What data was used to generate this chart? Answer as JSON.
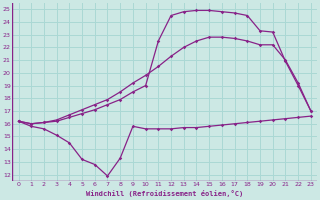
{
  "background_color": "#cce8e4",
  "grid_color": "#aad8d4",
  "line_color": "#882288",
  "xlabel": "Windchill (Refroidissement éolien,°C)",
  "xlim": [
    -0.5,
    23.5
  ],
  "ylim": [
    11.5,
    25.5
  ],
  "yticks": [
    12,
    13,
    14,
    15,
    16,
    17,
    18,
    19,
    20,
    21,
    22,
    23,
    24,
    25
  ],
  "xticks": [
    0,
    1,
    2,
    3,
    4,
    5,
    6,
    7,
    8,
    9,
    10,
    11,
    12,
    13,
    14,
    15,
    16,
    17,
    18,
    19,
    20,
    21,
    22,
    23
  ],
  "line1_x": [
    0,
    1,
    2,
    3,
    4,
    5,
    6,
    7,
    8,
    9,
    10,
    11,
    12,
    13,
    14,
    15,
    16,
    17,
    18,
    19,
    20,
    21,
    22,
    23
  ],
  "line1_y": [
    16.2,
    15.8,
    15.6,
    15.1,
    14.5,
    13.2,
    12.8,
    11.9,
    13.3,
    15.8,
    15.6,
    15.6,
    15.6,
    15.7,
    15.7,
    15.8,
    15.9,
    16.0,
    16.1,
    16.2,
    16.3,
    16.4,
    16.5,
    16.6
  ],
  "line2_x": [
    0,
    1,
    2,
    3,
    4,
    5,
    6,
    7,
    8,
    9,
    10,
    11,
    12,
    13,
    14,
    15,
    16,
    17,
    18,
    19,
    20,
    21,
    22,
    23
  ],
  "line2_y": [
    16.2,
    16.0,
    16.1,
    16.3,
    16.7,
    17.1,
    17.5,
    17.9,
    18.5,
    19.2,
    19.8,
    20.5,
    21.3,
    22.0,
    22.5,
    22.8,
    22.8,
    22.7,
    22.5,
    22.2,
    22.2,
    21.0,
    19.2,
    17.0
  ],
  "line3_x": [
    0,
    1,
    2,
    3,
    4,
    5,
    6,
    7,
    8,
    9,
    10,
    11,
    12,
    13,
    14,
    15,
    16,
    17,
    18,
    19,
    20,
    21,
    22,
    23
  ],
  "line3_y": [
    16.2,
    16.0,
    16.1,
    16.2,
    16.5,
    16.8,
    17.1,
    17.5,
    17.9,
    18.5,
    19.0,
    22.5,
    24.5,
    24.8,
    24.9,
    24.9,
    24.8,
    24.7,
    24.5,
    23.3,
    23.2,
    20.9,
    19.0,
    17.0
  ]
}
